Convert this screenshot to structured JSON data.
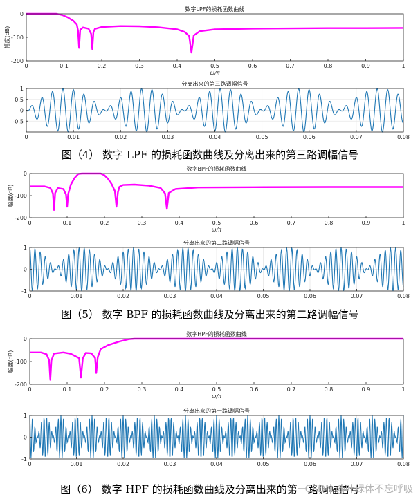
{
  "figures": [
    {
      "caption": "图（4） 数字 LPF 的损耗函数曲线及分离出来的第三路调幅信号",
      "chart_data": [
        {
          "type": "line",
          "title": "数字LPF的损耗函数曲线",
          "xlabel": "ω/π",
          "ylabel": "幅度(dB)",
          "xlim": [
            0,
            1
          ],
          "ylim": [
            -200,
            0
          ],
          "xticks": [
            "0",
            "0.1",
            "0.2",
            "0.3",
            "0.4",
            "0.5",
            "0.6",
            "0.7",
            "0.8",
            "0.9",
            "1"
          ],
          "yticks": [
            "0",
            "-100",
            "-200"
          ],
          "color": "#ff00ff",
          "series": [
            {
              "x": [
                0,
                0.08,
                0.095,
                0.11,
                0.125,
                0.134,
                0.137,
                0.14,
                0.143,
                0.15,
                0.165,
                0.172,
                0.175,
                0.178,
                0.182,
                0.2,
                0.25,
                0.3,
                0.35,
                0.4,
                0.42,
                0.432,
                0.438,
                0.444,
                0.46,
                0.5,
                0.6,
                0.7,
                0.8,
                0.9,
                1.0
              ],
              "y": [
                0,
                0,
                -5,
                -15,
                -30,
                -45,
                -70,
                -145,
                -68,
                -58,
                -63,
                -85,
                -150,
                -78,
                -64,
                -56,
                -52,
                -53,
                -57,
                -66,
                -77,
                -95,
                -165,
                -92,
                -74,
                -66,
                -63,
                -62,
                -61,
                -61,
                -60
              ]
            }
          ]
        },
        {
          "type": "line",
          "title": "分离出来的第三路调幅信号",
          "xlim": [
            0,
            0.08
          ],
          "ylim": [
            -1,
            1
          ],
          "xticks": [
            "0",
            "0.01",
            "0.02",
            "0.03",
            "0.04",
            "0.05",
            "0.06",
            "0.07",
            "0.08"
          ],
          "yticks": [
            "1",
            "0.5",
            "0",
            "-0.5"
          ],
          "color": "#1f77b4",
          "signal": {
            "carrier_hz": 450,
            "mod_hz": 30,
            "phase": 1.5707963
          }
        }
      ]
    },
    {
      "caption": "图（5） 数字 BPF 的损耗函数曲线及分离出来的第二路调幅信号",
      "chart_data": [
        {
          "type": "line",
          "title": "数字BPF的损耗函数曲线",
          "xlabel": "ω/π",
          "ylabel": "幅度(dB)",
          "xlim": [
            0,
            1
          ],
          "ylim": [
            -200,
            0
          ],
          "xticks": [
            "0",
            "0.1",
            "0.2",
            "0.3",
            "0.4",
            "0.5",
            "0.6",
            "0.7",
            "0.8",
            "0.9",
            "1"
          ],
          "yticks": [
            "0",
            "-100",
            "-200"
          ],
          "color": "#ff00ff",
          "series": [
            {
              "x": [
                0,
                0.04,
                0.055,
                0.062,
                0.065,
                0.068,
                0.075,
                0.09,
                0.097,
                0.1,
                0.103,
                0.11,
                0.12,
                0.13,
                0.14,
                0.19,
                0.2,
                0.21,
                0.22,
                0.228,
                0.232,
                0.236,
                0.24,
                0.25,
                0.28,
                0.32,
                0.35,
                0.362,
                0.367,
                0.372,
                0.39,
                0.45,
                0.6,
                0.8,
                1.0
              ],
              "y": [
                -58,
                -58,
                -65,
                -90,
                -165,
                -88,
                -66,
                -70,
                -95,
                -150,
                -92,
                -50,
                -20,
                -2,
                0,
                0,
                -8,
                -25,
                -50,
                -80,
                -150,
                -85,
                -60,
                -52,
                -50,
                -55,
                -65,
                -90,
                -160,
                -88,
                -70,
                -63,
                -62,
                -61,
                -61
              ]
            }
          ]
        },
        {
          "type": "line",
          "title": "分离出来的第二路调幅信号",
          "xlim": [
            0,
            0.08
          ],
          "ylim": [
            -1,
            1
          ],
          "xticks": [
            "0",
            "0.01",
            "0.02",
            "0.03",
            "0.04",
            "0.05",
            "0.06",
            "0.07",
            "0.08"
          ],
          "yticks": [
            "1",
            "0",
            "-1"
          ],
          "color": "#1f77b4",
          "signal": {
            "carrier_hz": 900,
            "mod_hz": 45,
            "phase": 0
          }
        }
      ]
    },
    {
      "caption": "图（6） 数字 HPF 的损耗函数曲线及分离出来的第一路调幅信号",
      "chart_data": [
        {
          "type": "line",
          "title": "数字HPF的损耗函数曲线",
          "xlabel": "ω/π",
          "ylabel": "幅度(dB)",
          "xlim": [
            0,
            1
          ],
          "ylim": [
            -200,
            0
          ],
          "xticks": [
            "0",
            "0.1",
            "0.2",
            "0.3",
            "0.4",
            "0.5",
            "0.6",
            "0.7",
            "0.8",
            "0.9",
            "1"
          ],
          "yticks": [
            "0",
            "-100",
            "-200"
          ],
          "color": "#ff00ff",
          "series": [
            {
              "x": [
                0,
                0.03,
                0.045,
                0.052,
                0.055,
                0.058,
                0.065,
                0.09,
                0.11,
                0.132,
                0.137,
                0.142,
                0.15,
                0.165,
                0.175,
                0.178,
                0.182,
                0.19,
                0.21,
                0.24,
                0.265,
                0.28,
                1.0
              ],
              "y": [
                -60,
                -60,
                -68,
                -95,
                -180,
                -95,
                -65,
                -60,
                -66,
                -85,
                -170,
                -86,
                -62,
                -64,
                -85,
                -150,
                -80,
                -45,
                -28,
                -12,
                -2,
                0,
                0
              ]
            }
          ]
        },
        {
          "type": "line",
          "title": "分离出来的第一路调幅信号",
          "xlim": [
            0,
            0.08
          ],
          "ylim": [
            -1,
            1
          ],
          "xticks": [
            "0",
            "0.01",
            "0.02",
            "0.03",
            "0.04",
            "0.05",
            "0.06",
            "0.07",
            "0.08"
          ],
          "yticks": [
            "1",
            "0",
            "-1"
          ],
          "color": "#1f77b4",
          "signal": {
            "carrier_hz": 1800,
            "mod_hz": 150,
            "phase": 0
          }
        }
      ]
    }
  ],
  "watermark": "CSDN @叶绿体不忘呼吸"
}
